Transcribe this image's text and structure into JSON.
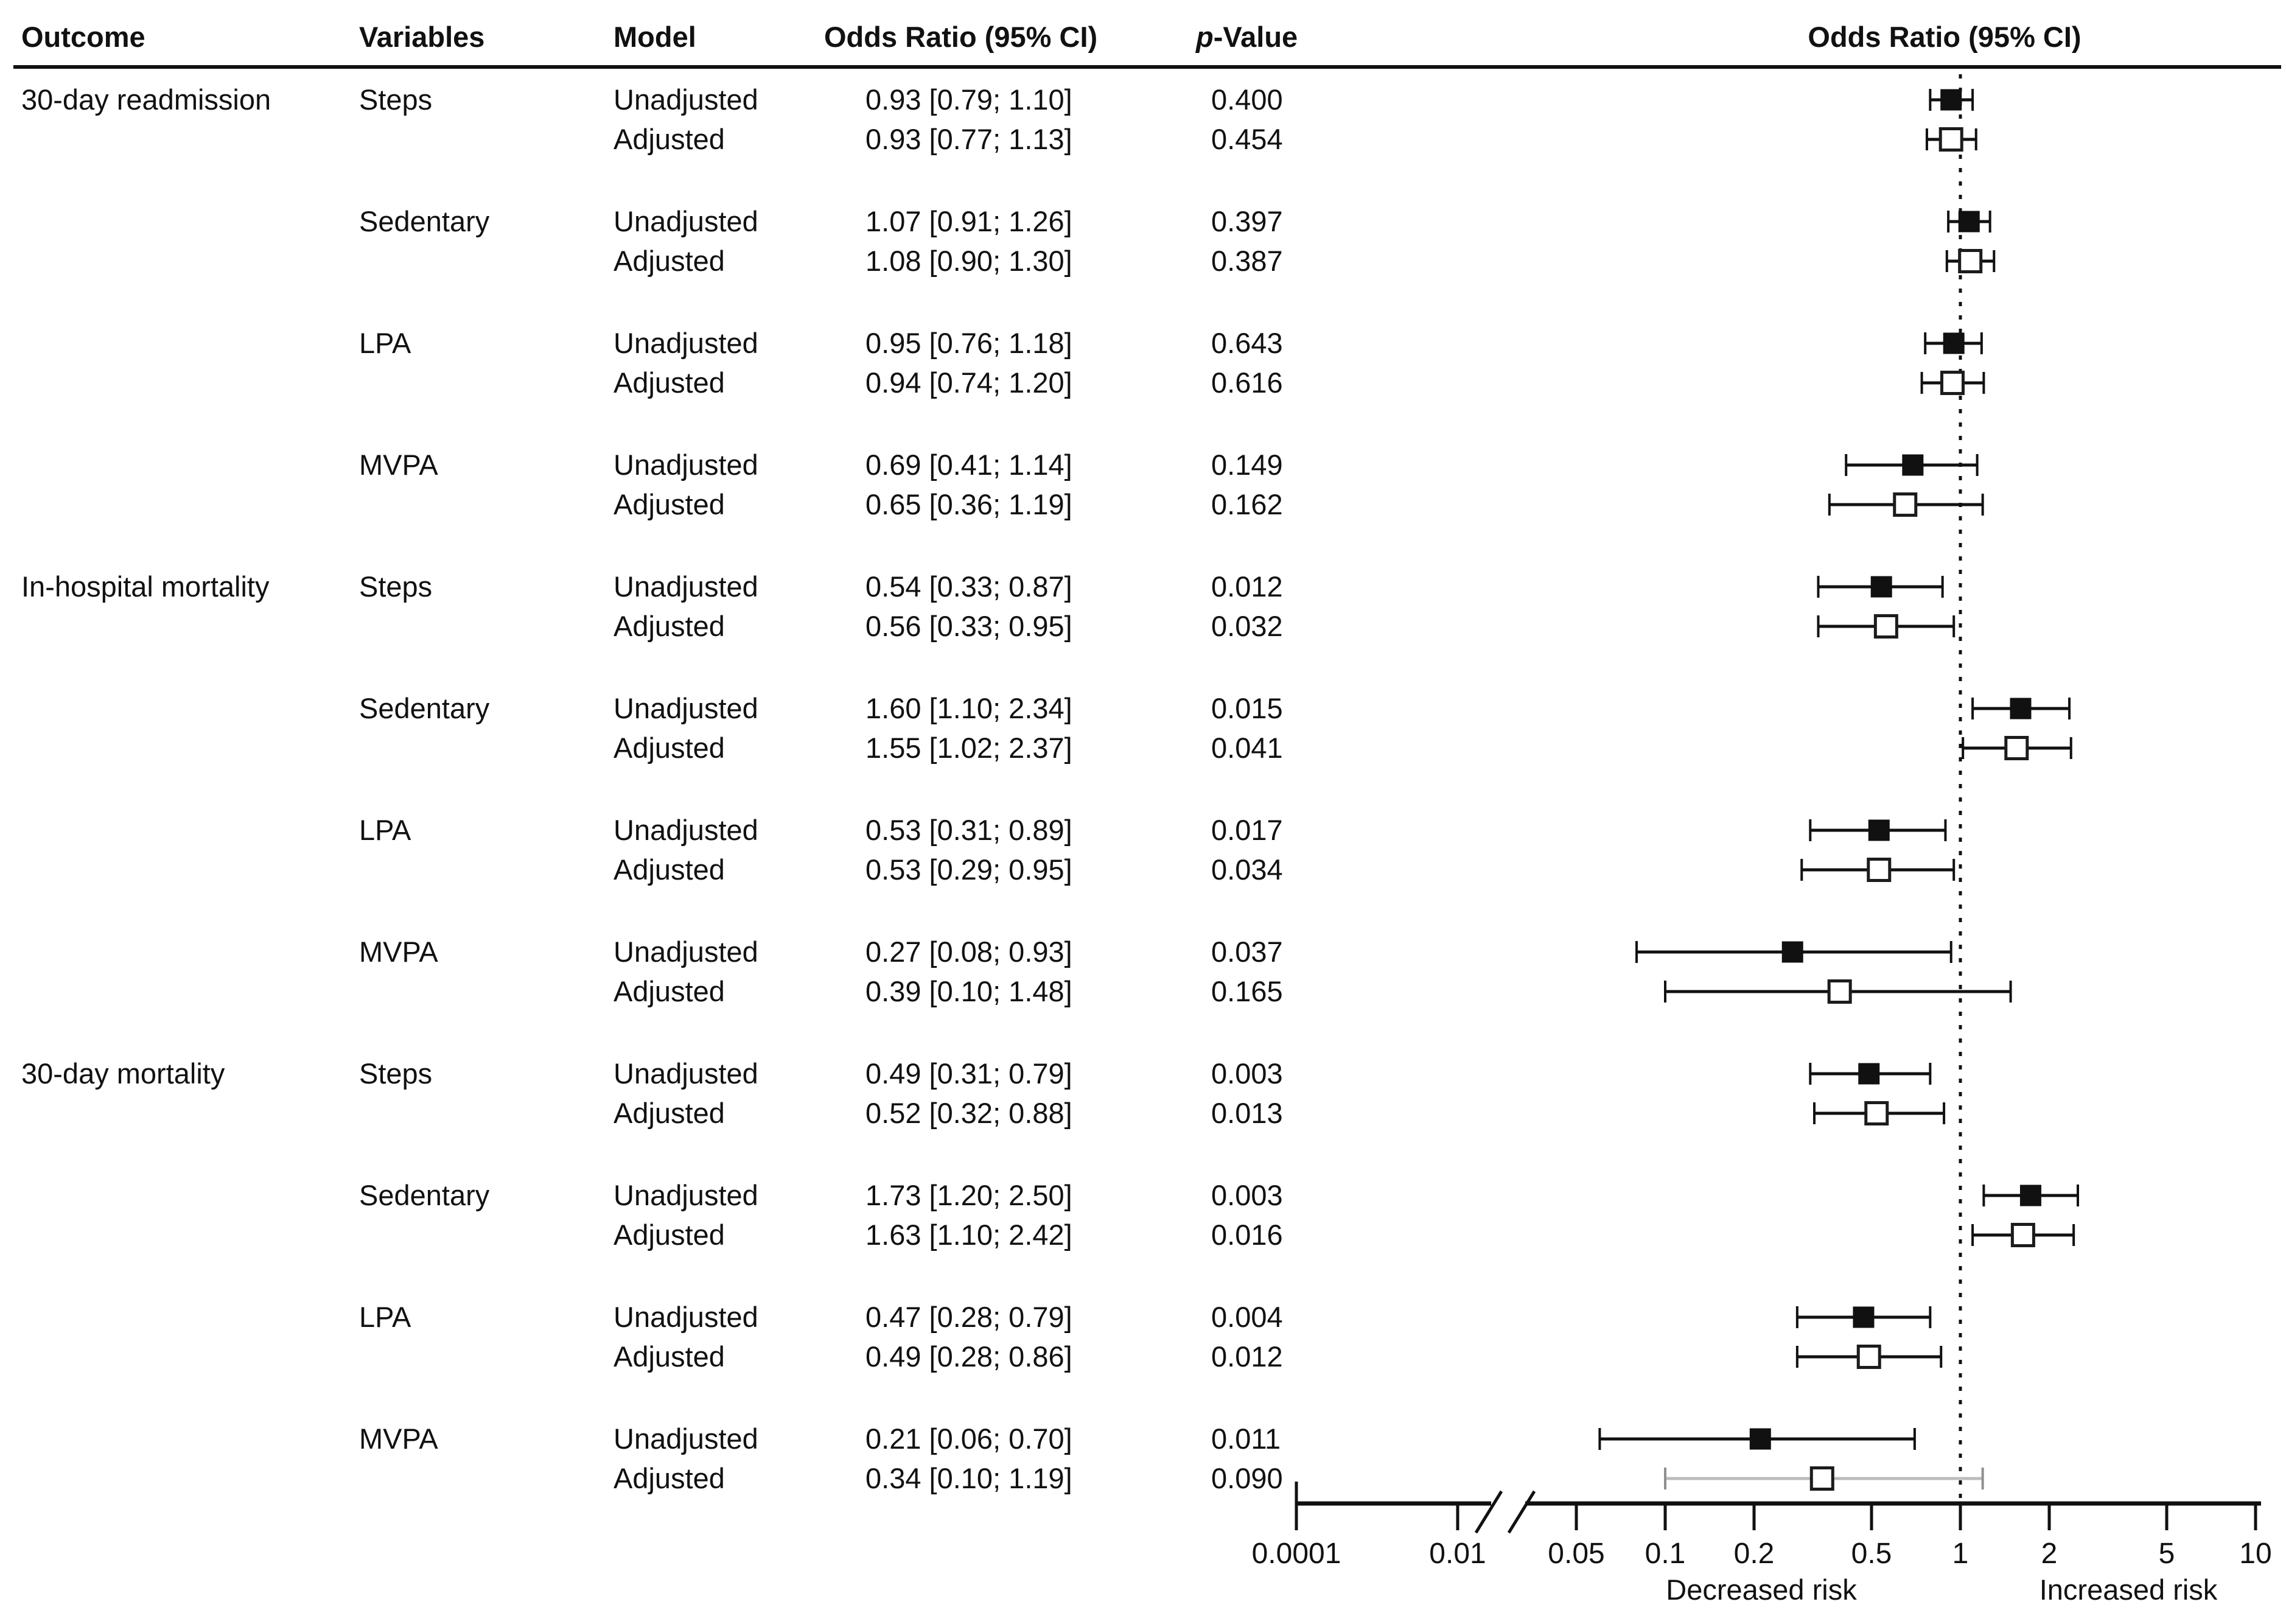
{
  "header": {
    "outcome": "Outcome",
    "variables": "Variables",
    "model": "Model",
    "odds_ratio": "Odds Ratio (95% CI)",
    "p_italic": "p",
    "p_rest": "-Value",
    "plot_title": "Odds Ratio (95% CI)"
  },
  "axis": {
    "ticks": [
      "0.0001",
      "0.01",
      "0.05",
      "0.1",
      "0.2",
      "0.5",
      "1",
      "2",
      "5",
      "10"
    ],
    "decreased_label": "Decreased risk",
    "increased_label": "Increased risk",
    "reference_value": "1"
  },
  "colors": {
    "ink": "#111111",
    "muted_line": "#bcbcbc",
    "muted_cap": "#8f8f8f",
    "background": "#ffffff"
  },
  "chart_data": {
    "type": "forest",
    "x_scale": "log10; axis break between 0.01 and 0.05; ticks 0.0001 and 0.01 compressed left of break",
    "reference_line": 1,
    "xlim_log_region": [
      0.05,
      10
    ],
    "marker_legend": {
      "filled": "Unadjusted",
      "open": "Adjusted"
    },
    "outcomes": [
      {
        "label": "30-day readmission",
        "variables": [
          {
            "label": "Steps",
            "rows": [
              {
                "model": "Unadjusted",
                "or": 0.93,
                "ci_low": 0.79,
                "ci_high": 1.1,
                "or_text": "0.93 [0.79; 1.10]",
                "p_text": "0.400",
                "marker": "filled"
              },
              {
                "model": "Adjusted",
                "or": 0.93,
                "ci_low": 0.77,
                "ci_high": 1.13,
                "or_text": "0.93 [0.77; 1.13]",
                "p_text": "0.454",
                "marker": "open"
              }
            ]
          },
          {
            "label": "Sedentary",
            "rows": [
              {
                "model": "Unadjusted",
                "or": 1.07,
                "ci_low": 0.91,
                "ci_high": 1.26,
                "or_text": "1.07 [0.91; 1.26]",
                "p_text": "0.397",
                "marker": "filled"
              },
              {
                "model": "Adjusted",
                "or": 1.08,
                "ci_low": 0.9,
                "ci_high": 1.3,
                "or_text": "1.08 [0.90; 1.30]",
                "p_text": "0.387",
                "marker": "open"
              }
            ]
          },
          {
            "label": "LPA",
            "rows": [
              {
                "model": "Unadjusted",
                "or": 0.95,
                "ci_low": 0.76,
                "ci_high": 1.18,
                "or_text": "0.95 [0.76; 1.18]",
                "p_text": "0.643",
                "marker": "filled"
              },
              {
                "model": "Adjusted",
                "or": 0.94,
                "ci_low": 0.74,
                "ci_high": 1.2,
                "or_text": "0.94 [0.74; 1.20]",
                "p_text": "0.616",
                "marker": "open"
              }
            ]
          },
          {
            "label": "MVPA",
            "rows": [
              {
                "model": "Unadjusted",
                "or": 0.69,
                "ci_low": 0.41,
                "ci_high": 1.14,
                "or_text": "0.69 [0.41; 1.14]",
                "p_text": "0.149",
                "marker": "filled"
              },
              {
                "model": "Adjusted",
                "or": 0.65,
                "ci_low": 0.36,
                "ci_high": 1.19,
                "or_text": "0.65 [0.36; 1.19]",
                "p_text": "0.162",
                "marker": "open"
              }
            ]
          }
        ]
      },
      {
        "label": "In-hospital mortality",
        "variables": [
          {
            "label": "Steps",
            "rows": [
              {
                "model": "Unadjusted",
                "or": 0.54,
                "ci_low": 0.33,
                "ci_high": 0.87,
                "or_text": "0.54 [0.33; 0.87]",
                "p_text": "0.012",
                "marker": "filled"
              },
              {
                "model": "Adjusted",
                "or": 0.56,
                "ci_low": 0.33,
                "ci_high": 0.95,
                "or_text": "0.56 [0.33; 0.95]",
                "p_text": "0.032",
                "marker": "open"
              }
            ]
          },
          {
            "label": "Sedentary",
            "rows": [
              {
                "model": "Unadjusted",
                "or": 1.6,
                "ci_low": 1.1,
                "ci_high": 2.34,
                "or_text": "1.60 [1.10; 2.34]",
                "p_text": "0.015",
                "marker": "filled"
              },
              {
                "model": "Adjusted",
                "or": 1.55,
                "ci_low": 1.02,
                "ci_high": 2.37,
                "or_text": "1.55 [1.02; 2.37]",
                "p_text": "0.041",
                "marker": "open"
              }
            ]
          },
          {
            "label": "LPA",
            "rows": [
              {
                "model": "Unadjusted",
                "or": 0.53,
                "ci_low": 0.31,
                "ci_high": 0.89,
                "or_text": "0.53 [0.31; 0.89]",
                "p_text": "0.017",
                "marker": "filled"
              },
              {
                "model": "Adjusted",
                "or": 0.53,
                "ci_low": 0.29,
                "ci_high": 0.95,
                "or_text": "0.53 [0.29; 0.95]",
                "p_text": "0.034",
                "marker": "open"
              }
            ]
          },
          {
            "label": "MVPA",
            "rows": [
              {
                "model": "Unadjusted",
                "or": 0.27,
                "ci_low": 0.08,
                "ci_high": 0.93,
                "or_text": "0.27 [0.08; 0.93]",
                "p_text": "0.037",
                "marker": "filled"
              },
              {
                "model": "Adjusted",
                "or": 0.39,
                "ci_low": 0.1,
                "ci_high": 1.48,
                "or_text": "0.39 [0.10; 1.48]",
                "p_text": "0.165",
                "marker": "open"
              }
            ]
          }
        ]
      },
      {
        "label": "30-day mortality",
        "variables": [
          {
            "label": "Steps",
            "rows": [
              {
                "model": "Unadjusted",
                "or": 0.49,
                "ci_low": 0.31,
                "ci_high": 0.79,
                "or_text": "0.49 [0.31; 0.79]",
                "p_text": "0.003",
                "marker": "filled"
              },
              {
                "model": "Adjusted",
                "or": 0.52,
                "ci_low": 0.32,
                "ci_high": 0.88,
                "or_text": "0.52 [0.32; 0.88]",
                "p_text": "0.013",
                "marker": "open"
              }
            ]
          },
          {
            "label": "Sedentary",
            "rows": [
              {
                "model": "Unadjusted",
                "or": 1.73,
                "ci_low": 1.2,
                "ci_high": 2.5,
                "or_text": "1.73 [1.20; 2.50]",
                "p_text": "0.003",
                "marker": "filled"
              },
              {
                "model": "Adjusted",
                "or": 1.63,
                "ci_low": 1.1,
                "ci_high": 2.42,
                "or_text": "1.63 [1.10; 2.42]",
                "p_text": "0.016",
                "marker": "open"
              }
            ]
          },
          {
            "label": "LPA",
            "rows": [
              {
                "model": "Unadjusted",
                "or": 0.47,
                "ci_low": 0.28,
                "ci_high": 0.79,
                "or_text": "0.47 [0.28; 0.79]",
                "p_text": "0.004",
                "marker": "filled"
              },
              {
                "model": "Adjusted",
                "or": 0.49,
                "ci_low": 0.28,
                "ci_high": 0.86,
                "or_text": "0.49 [0.28; 0.86]",
                "p_text": "0.012",
                "marker": "open"
              }
            ]
          },
          {
            "label": "MVPA",
            "rows": [
              {
                "model": "Unadjusted",
                "or": 0.21,
                "ci_low": 0.06,
                "ci_high": 0.7,
                "or_text": "0.21 [0.06; 0.70]",
                "p_text": "0.011",
                "marker": "filled"
              },
              {
                "model": "Adjusted",
                "or": 0.34,
                "ci_low": 0.1,
                "ci_high": 1.19,
                "or_text": "0.34 [0.10; 1.19]",
                "p_text": "0.090",
                "marker": "open",
                "muted": true
              }
            ]
          }
        ]
      }
    ]
  }
}
